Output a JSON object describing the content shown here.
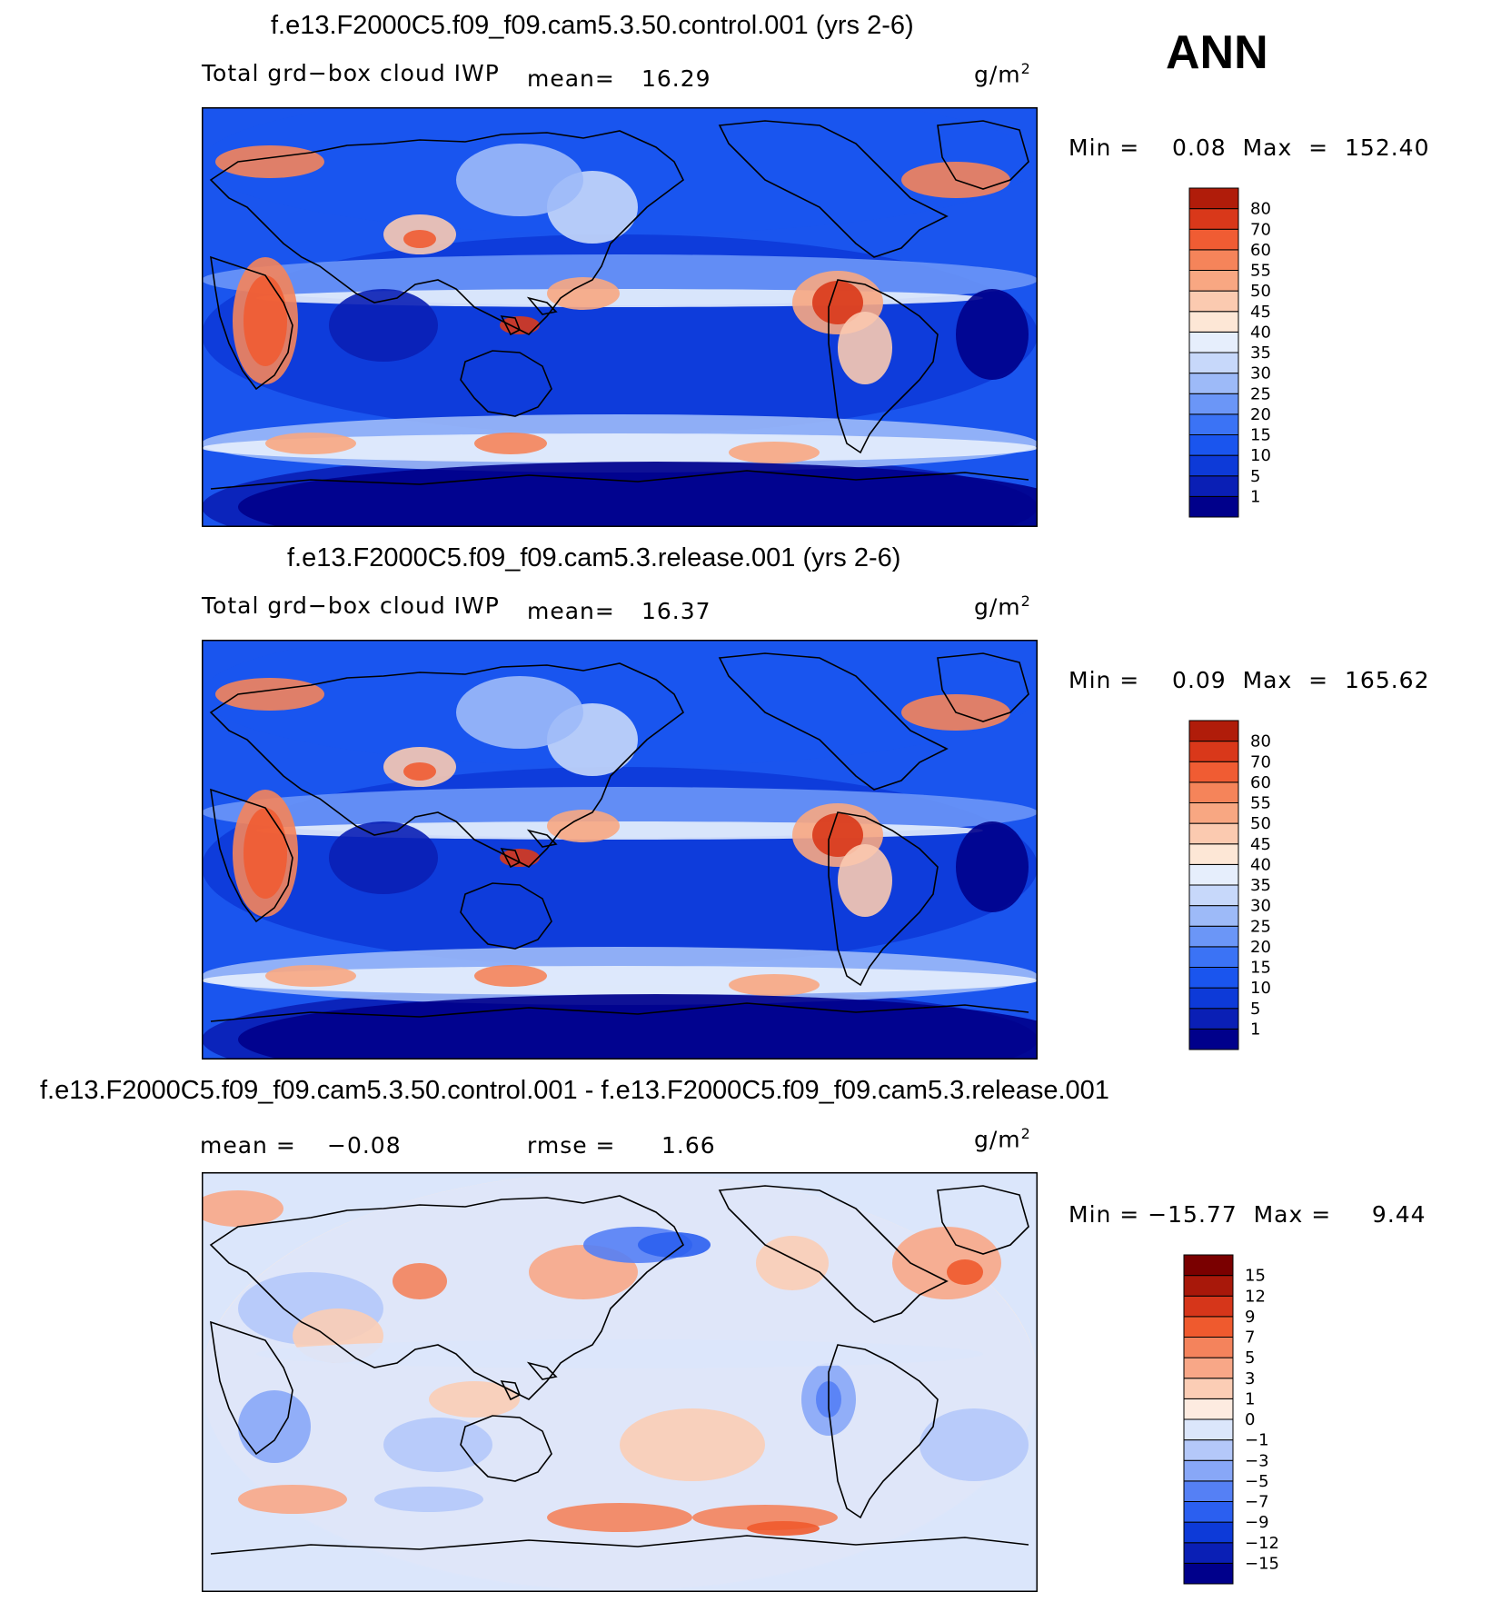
{
  "season": "ANN",
  "colors": {
    "abs_scale": [
      "#00008b",
      "#0a1fb5",
      "#0d3ad8",
      "#1a55ee",
      "#3b73f5",
      "#6b96f7",
      "#9dbaf8",
      "#c7d8fa",
      "#e6eefc",
      "#fde7d6",
      "#fbcab0",
      "#f8a782",
      "#f5845a",
      "#f05c33",
      "#d9381a",
      "#b01c0a",
      "#800000"
    ],
    "diff_scale": [
      "#00008b",
      "#0a1fb5",
      "#0d3ad8",
      "#2b5ff0",
      "#5580f5",
      "#88a7f7",
      "#b4c8f9",
      "#dbe6fb",
      "#fdebe0",
      "#fbcdb5",
      "#f8a787",
      "#f4835c",
      "#ef5a2e",
      "#d6361a",
      "#a8180a",
      "#7a0000"
    ]
  },
  "panels": [
    {
      "title": "f.e13.F2000C5.f09_f09.cam5.3.50.control.001 (yrs 2-6)",
      "left_label": "Total grd−box cloud IWP",
      "stat_label": "mean=",
      "stat_value": "16.29",
      "units": "g/m",
      "units_exp": "2",
      "minmax": "Min =    0.08  Max  =  152.40",
      "chart_data": {
        "type": "heatmap",
        "title": "f.e13.F2000C5.f09_f09.cam5.3.50.control.001 (yrs 2-6)",
        "variable": "Total grd−box cloud IWP",
        "units": "g/m2",
        "mean": 16.29,
        "min": 0.08,
        "max": 152.4,
        "levels": [
          1,
          5,
          10,
          15,
          20,
          25,
          30,
          35,
          40,
          45,
          50,
          55,
          60,
          70,
          80
        ]
      },
      "cb_labels": [
        "80",
        "70",
        "60",
        "55",
        "50",
        "45",
        "40",
        "35",
        "30",
        "25",
        "20",
        "15",
        "10",
        "5",
        "1"
      ]
    },
    {
      "title": "f.e13.F2000C5.f09_f09.cam5.3.release.001 (yrs 2-6)",
      "left_label": "Total grd−box cloud IWP",
      "stat_label": "mean=",
      "stat_value": "16.37",
      "units": "g/m",
      "units_exp": "2",
      "minmax": "Min =    0.09  Max  =  165.62",
      "chart_data": {
        "type": "heatmap",
        "title": "f.e13.F2000C5.f09_f09.cam5.3.release.001 (yrs 2-6)",
        "variable": "Total grd−box cloud IWP",
        "units": "g/m2",
        "mean": 16.37,
        "min": 0.09,
        "max": 165.62,
        "levels": [
          1,
          5,
          10,
          15,
          20,
          25,
          30,
          35,
          40,
          45,
          50,
          55,
          60,
          70,
          80
        ]
      },
      "cb_labels": [
        "80",
        "70",
        "60",
        "55",
        "50",
        "45",
        "40",
        "35",
        "30",
        "25",
        "20",
        "15",
        "10",
        "5",
        "1"
      ]
    },
    {
      "title": "f.e13.F2000C5.f09_f09.cam5.3.50.control.001 - f.e13.F2000C5.f09_f09.cam5.3.release.001",
      "left_label": "mean =",
      "left_value": "−0.08",
      "stat_label": "rmse =",
      "stat_value": "1.66",
      "units": "g/m",
      "units_exp": "2",
      "minmax": "Min = −15.77  Max =     9.44",
      "chart_data": {
        "type": "heatmap",
        "title": "f.e13.F2000C5.f09_f09.cam5.3.50.control.001 - f.e13.F2000C5.f09_f09.cam5.3.release.001",
        "units": "g/m2",
        "mean": -0.08,
        "rmse": 1.66,
        "min": -15.77,
        "max": 9.44,
        "levels": [
          -15,
          -12,
          -9,
          -7,
          -5,
          -3,
          -1,
          0,
          1,
          3,
          5,
          7,
          9,
          12,
          15
        ]
      },
      "cb_labels": [
        "15",
        "12",
        "9",
        "7",
        "5",
        "3",
        "1",
        "0",
        "−1",
        "−3",
        "−5",
        "−7",
        "−9",
        "−12",
        "−15"
      ]
    }
  ]
}
